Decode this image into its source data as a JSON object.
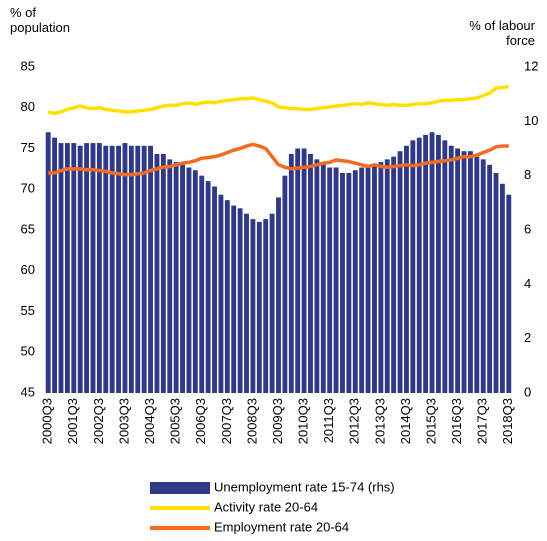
{
  "chart_data": {
    "type": "bar-line",
    "ylabel": "% of population",
    "y2label": "% of labour force",
    "categories": [
      "2000Q3",
      null,
      null,
      null,
      "2001Q3",
      null,
      null,
      null,
      "2002Q3",
      null,
      null,
      null,
      "2003Q3",
      null,
      null,
      null,
      "2004Q3",
      null,
      null,
      null,
      "2005Q3",
      null,
      null,
      null,
      "2006Q3",
      null,
      null,
      null,
      "2007Q3",
      null,
      null,
      null,
      "2008Q3",
      null,
      null,
      null,
      "2009Q3",
      null,
      null,
      null,
      "2010Q3",
      null,
      null,
      null,
      "2011Q3",
      null,
      null,
      null,
      "2012Q3",
      null,
      null,
      null,
      "2013Q3",
      null,
      null,
      null,
      "2014Q3",
      null,
      null,
      null,
      "2015Q3",
      null,
      null,
      null,
      "2016Q3",
      null,
      null,
      null,
      "2017Q3",
      null,
      null,
      null,
      "2018Q3"
    ],
    "series": [
      {
        "name": "Unemployment rate 15-74 (rhs)",
        "type": "bar",
        "axis": "y2",
        "color": "#2f3985",
        "values": [
          9.6,
          9.4,
          9.2,
          9.2,
          9.2,
          9.1,
          9.2,
          9.2,
          9.2,
          9.1,
          9.1,
          9.1,
          9.2,
          9.1,
          9.1,
          9.1,
          9.1,
          8.8,
          8.8,
          8.6,
          8.5,
          8.4,
          8.3,
          8.2,
          8.0,
          7.8,
          7.6,
          7.3,
          7.1,
          6.9,
          6.8,
          6.6,
          6.4,
          6.3,
          6.4,
          6.6,
          7.2,
          8.0,
          8.8,
          9.0,
          9.0,
          8.8,
          8.6,
          8.5,
          8.3,
          8.3,
          8.1,
          8.1,
          8.2,
          8.3,
          8.3,
          8.4,
          8.5,
          8.6,
          8.7,
          8.9,
          9.1,
          9.3,
          9.4,
          9.5,
          9.6,
          9.5,
          9.3,
          9.1,
          9.0,
          8.9,
          8.9,
          8.7,
          8.6,
          8.4,
          8.1,
          7.7,
          7.3
        ]
      },
      {
        "name": "Activity rate 20-64",
        "type": "line",
        "color": "#ffe100",
        "values": [
          79.5,
          79.3,
          79.5,
          79.8,
          80.0,
          80.2,
          80.0,
          79.9,
          80.0,
          79.8,
          79.7,
          79.6,
          79.5,
          79.5,
          79.6,
          79.7,
          79.8,
          80.0,
          80.2,
          80.3,
          80.3,
          80.5,
          80.6,
          80.4,
          80.6,
          80.7,
          80.6,
          80.8,
          80.9,
          81.0,
          81.1,
          81.1,
          81.2,
          81.0,
          80.8,
          80.6,
          80.1,
          80.0,
          79.9,
          79.9,
          79.8,
          79.8,
          79.9,
          80.0,
          80.1,
          80.2,
          80.3,
          80.4,
          80.5,
          80.4,
          80.6,
          80.5,
          80.4,
          80.3,
          80.4,
          80.3,
          80.3,
          80.4,
          80.5,
          80.5,
          80.6,
          80.8,
          80.9,
          80.9,
          81.0,
          81.0,
          81.1,
          81.2,
          81.5,
          81.8,
          82.4,
          82.5,
          82.6
        ]
      },
      {
        "name": "Employment rate 20-64",
        "type": "line",
        "color": "#f26b21",
        "values": [
          72.0,
          72.0,
          72.3,
          72.5,
          72.5,
          72.5,
          72.4,
          72.4,
          72.3,
          72.2,
          72.0,
          71.9,
          71.8,
          71.8,
          71.9,
          72.0,
          72.3,
          72.5,
          72.7,
          72.8,
          73.0,
          73.2,
          73.3,
          73.5,
          73.8,
          73.9,
          74.0,
          74.2,
          74.5,
          74.8,
          75.0,
          75.3,
          75.5,
          75.3,
          75.0,
          74.0,
          73.0,
          72.7,
          72.5,
          72.6,
          72.7,
          72.8,
          73.0,
          73.2,
          73.3,
          73.6,
          73.5,
          73.4,
          73.2,
          73.0,
          72.8,
          73.0,
          72.8,
          72.7,
          72.8,
          72.9,
          73.0,
          72.9,
          73.0,
          73.2,
          73.3,
          73.4,
          73.5,
          73.6,
          73.8,
          74.0,
          74.0,
          74.2,
          74.5,
          74.8,
          75.2,
          75.3,
          75.3
        ]
      }
    ],
    "ylim": [
      45,
      85
    ],
    "yticks": [
      45,
      50,
      55,
      60,
      65,
      70,
      75,
      80,
      85
    ],
    "y2lim": [
      0,
      12
    ],
    "y2ticks": [
      0,
      2,
      4,
      6,
      8,
      10,
      12
    ],
    "grid": false
  }
}
